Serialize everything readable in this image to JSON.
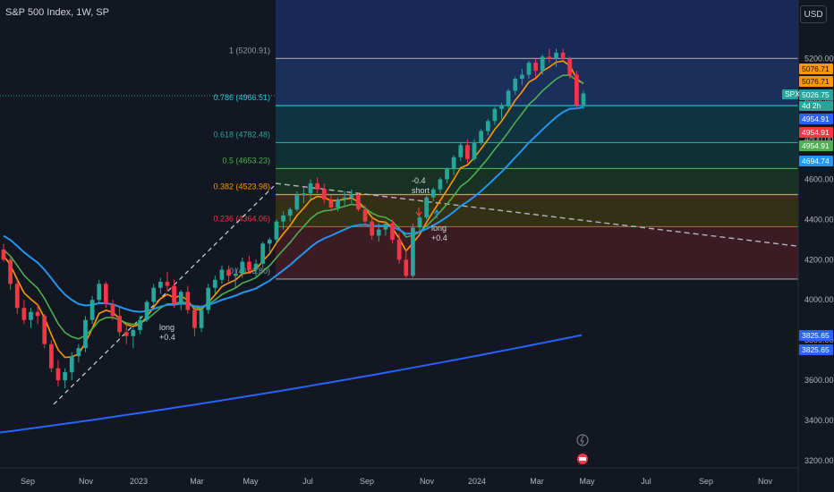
{
  "header": {
    "title": "S&P 500 Index, 1W, SP"
  },
  "currency_button": "USD",
  "chart_data": {
    "type": "candlestick",
    "title": "S&P 500 Index, 1W, SP",
    "y_axis": {
      "ticks": [
        3200,
        3400,
        3600,
        3800,
        4000,
        4200,
        4400,
        4600,
        4800,
        5000,
        5200
      ],
      "ylim": [
        3180,
        5420
      ],
      "position": "right"
    },
    "x_axis": {
      "tick_labels": [
        "Sep",
        "Nov",
        "2023",
        "Mar",
        "May",
        "Jul",
        "Sep",
        "Nov",
        "2024",
        "Mar",
        "May",
        "Jul",
        "Sep",
        "Nov"
      ]
    },
    "fibonacci": [
      {
        "ratio": "1",
        "value": 5200.91,
        "label": "1 (5200.91)",
        "color": "#9598a1"
      },
      {
        "ratio": "0.786",
        "value": 4966.51,
        "label": "0.786 (4966.51)",
        "color": "#26c6da"
      },
      {
        "ratio": "0.618",
        "value": 4782.48,
        "label": "0.618 (4782.48)",
        "color": "#26a69a"
      },
      {
        "ratio": "0.5",
        "value": 4653.23,
        "label": "0.5 (4653.23)",
        "color": "#4caf50"
      },
      {
        "ratio": "0.382",
        "value": 4523.98,
        "label": "0.382 (4523.98)",
        "color": "#ff9800"
      },
      {
        "ratio": "0.236",
        "value": 4364.06,
        "label": "0.236 (4364.06)",
        "color": "#f23645"
      },
      {
        "ratio": "0",
        "value": 4103.8,
        "label": "0 (4103.80)",
        "color": "#9598a1"
      }
    ],
    "annotations": [
      {
        "text": "long",
        "value": "+0.4"
      },
      {
        "text": "short",
        "value": "-0.4"
      },
      {
        "text": "long",
        "value": "+0.4"
      }
    ],
    "price_labels": [
      {
        "text": "5076.71",
        "color": "#ff9800"
      },
      {
        "text": "5076.71",
        "color": "#ff9800"
      },
      {
        "text": "SPX",
        "color": "#26a69a"
      },
      {
        "text": "5026.75",
        "color": "#26a69a"
      },
      {
        "text": "4d 2h",
        "color": "#26a69a"
      },
      {
        "text": "4954.91",
        "color": "#2962ff"
      },
      {
        "text": "4954.91",
        "color": "#f23645"
      },
      {
        "text": "4954.91",
        "color": "#4caf50"
      },
      {
        "text": "4694.74",
        "color": "#2196f3"
      },
      {
        "text": "3825.65",
        "color": "#2962ff"
      },
      {
        "text": "3825.65",
        "color": "#2962ff"
      }
    ],
    "series": [
      {
        "kind": "candles",
        "values": [
          [
            4250,
            4280,
            4190,
            4200
          ],
          [
            4200,
            4220,
            4050,
            4080
          ],
          [
            4080,
            4100,
            3930,
            3960
          ],
          [
            3960,
            4000,
            3880,
            3900
          ],
          [
            3900,
            3960,
            3860,
            3940
          ],
          [
            3940,
            3980,
            3880,
            3920
          ],
          [
            3920,
            3930,
            3760,
            3780
          ],
          [
            3780,
            3800,
            3640,
            3660
          ],
          [
            3660,
            3700,
            3570,
            3600
          ],
          [
            3600,
            3660,
            3560,
            3640
          ],
          [
            3640,
            3740,
            3600,
            3720
          ],
          [
            3720,
            3780,
            3690,
            3760
          ],
          [
            3760,
            3920,
            3740,
            3900
          ],
          [
            3900,
            4020,
            3880,
            4000
          ],
          [
            4000,
            4100,
            3980,
            4080
          ],
          [
            4080,
            4090,
            3960,
            3980
          ],
          [
            3980,
            4000,
            3900,
            3920
          ],
          [
            3920,
            3960,
            3820,
            3840
          ],
          [
            3840,
            3880,
            3780,
            3820
          ],
          [
            3820,
            3860,
            3760,
            3850
          ],
          [
            3850,
            3920,
            3830,
            3900
          ],
          [
            3900,
            4000,
            3890,
            3990
          ],
          [
            3990,
            4080,
            3970,
            4060
          ],
          [
            4060,
            4110,
            4030,
            4090
          ],
          [
            4090,
            4140,
            4040,
            4070
          ],
          [
            4070,
            4100,
            3960,
            3980
          ],
          [
            3980,
            4050,
            3950,
            4040
          ],
          [
            4040,
            4070,
            3930,
            3950
          ],
          [
            3950,
            3970,
            3820,
            3860
          ],
          [
            3860,
            3960,
            3840,
            3950
          ],
          [
            3950,
            4080,
            3930,
            4060
          ],
          [
            4060,
            4120,
            4030,
            4100
          ],
          [
            4100,
            4170,
            4080,
            4150
          ],
          [
            4150,
            4170,
            4090,
            4120
          ],
          [
            4120,
            4160,
            4060,
            4130
          ],
          [
            4130,
            4210,
            4110,
            4190
          ],
          [
            4190,
            4220,
            4130,
            4150
          ],
          [
            4150,
            4200,
            4110,
            4180
          ],
          [
            4180,
            4290,
            4160,
            4280
          ],
          [
            4280,
            4310,
            4240,
            4300
          ],
          [
            4300,
            4400,
            4280,
            4390
          ],
          [
            4390,
            4440,
            4350,
            4420
          ],
          [
            4420,
            4460,
            4390,
            4450
          ],
          [
            4450,
            4540,
            4440,
            4520
          ],
          [
            4520,
            4560,
            4480,
            4530
          ],
          [
            4530,
            4600,
            4500,
            4580
          ],
          [
            4580,
            4610,
            4530,
            4550
          ],
          [
            4550,
            4580,
            4480,
            4500
          ],
          [
            4500,
            4520,
            4440,
            4460
          ],
          [
            4460,
            4510,
            4440,
            4500
          ],
          [
            4500,
            4540,
            4470,
            4510
          ],
          [
            4510,
            4550,
            4480,
            4520
          ],
          [
            4520,
            4530,
            4440,
            4450
          ],
          [
            4450,
            4470,
            4370,
            4390
          ],
          [
            4390,
            4410,
            4300,
            4320
          ],
          [
            4320,
            4380,
            4290,
            4350
          ],
          [
            4350,
            4390,
            4320,
            4380
          ],
          [
            4380,
            4400,
            4280,
            4300
          ],
          [
            4300,
            4330,
            4180,
            4200
          ],
          [
            4200,
            4250,
            4110,
            4120
          ],
          [
            4120,
            4380,
            4110,
            4360
          ],
          [
            4360,
            4420,
            4340,
            4410
          ],
          [
            4410,
            4520,
            4400,
            4510
          ],
          [
            4510,
            4560,
            4490,
            4550
          ],
          [
            4550,
            4610,
            4530,
            4600
          ],
          [
            4600,
            4660,
            4580,
            4650
          ],
          [
            4650,
            4720,
            4620,
            4710
          ],
          [
            4710,
            4780,
            4690,
            4770
          ],
          [
            4770,
            4800,
            4680,
            4700
          ],
          [
            4700,
            4800,
            4690,
            4780
          ],
          [
            4780,
            4850,
            4770,
            4840
          ],
          [
            4840,
            4900,
            4820,
            4890
          ],
          [
            4890,
            4960,
            4870,
            4950
          ],
          [
            4950,
            4980,
            4900,
            4970
          ],
          [
            4970,
            5050,
            4950,
            5040
          ],
          [
            5040,
            5110,
            5020,
            5100
          ],
          [
            5100,
            5150,
            5070,
            5120
          ],
          [
            5120,
            5190,
            5100,
            5180
          ],
          [
            5180,
            5200,
            5110,
            5140
          ],
          [
            5140,
            5220,
            5120,
            5210
          ],
          [
            5210,
            5250,
            5180,
            5200
          ],
          [
            5200,
            5250,
            5160,
            5230
          ],
          [
            5230,
            5250,
            5190,
            5200
          ],
          [
            5200,
            5210,
            5100,
            5120
          ],
          [
            5120,
            5140,
            4950,
            4970
          ],
          [
            4970,
            5040,
            4950,
            5026.75
          ]
        ]
      },
      {
        "kind": "ema-fast",
        "color": "#ff9800",
        "end_value": 5076.71
      },
      {
        "kind": "ema-mid",
        "color": "#4caf50",
        "end_value": 4954.91
      },
      {
        "kind": "ema-slow",
        "color": "#2196f3",
        "end_value": 4694.74
      },
      {
        "kind": "ema-long",
        "color": "#2962ff",
        "end_value": 3825.65
      }
    ]
  }
}
